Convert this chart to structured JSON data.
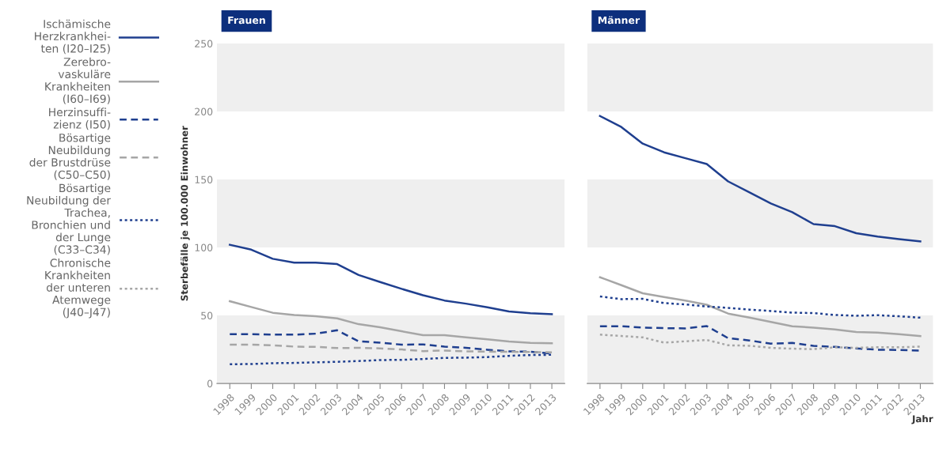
{
  "chart_data": [
    {
      "type": "line",
      "title": "Frauen",
      "ylabel": "Sterbefälle je 100.000 Einwohner",
      "categories": [
        "1998",
        "1999",
        "2000",
        "2001",
        "2002",
        "2003",
        "2004",
        "2005",
        "2006",
        "2007",
        "2008",
        "2009",
        "2010",
        "2011",
        "2012",
        "2013"
      ],
      "ylim": [
        0,
        250
      ],
      "yticks": [
        0,
        50,
        100,
        150,
        200,
        250
      ],
      "legend": "left",
      "marker": "none",
      "bands": [
        {
          "axis": "y",
          "from": 0,
          "to": 50,
          "color": "#efefef"
        },
        {
          "axis": "y",
          "from": 100,
          "to": 150,
          "color": "#efefef"
        },
        {
          "axis": "y",
          "from": 200,
          "to": 250,
          "color": "#efefef"
        }
      ],
      "series": [
        {
          "name": "Ischämische\nHerzkrankhei-\nten (I20–I25)",
          "color": "#1f3f8f",
          "line_style": "solid",
          "values": [
            102,
            98.4,
            91.7,
            88.8,
            88.8,
            87.8,
            79.8,
            74.6,
            69.6,
            64.9,
            61,
            58.7,
            56,
            52.9,
            51.6,
            51
          ]
        },
        {
          "name": "Zerebro-\nvaskuläre\nKrankheiten\n(I60–I69)",
          "color": "#a6a6a6",
          "line_style": "solid",
          "values": [
            60.5,
            56.2,
            52,
            50.4,
            49.4,
            47.9,
            43.6,
            41.3,
            38.4,
            35.5,
            35.5,
            33.9,
            32.4,
            30.8,
            29.8,
            29.5
          ]
        },
        {
          "name": "Herzinsuffi-\nzienz (I50)",
          "color": "#1f3f8f",
          "line_style": "dashed",
          "values": [
            36.2,
            36.2,
            35.9,
            35.9,
            36.6,
            39.1,
            31,
            30,
            28.5,
            28.7,
            27.1,
            26.2,
            24.8,
            23.6,
            23.4,
            22
          ]
        },
        {
          "name": "Bösartige\nNeubildung\nder Brustdrüse\n(C50–C50)",
          "color": "#a6a6a6",
          "line_style": "dashed",
          "values": [
            28.5,
            28.5,
            28.1,
            27.1,
            26.9,
            26,
            26.2,
            25.8,
            25,
            23.8,
            24.2,
            23.6,
            23.4,
            23.3,
            23.1,
            22.9
          ]
        },
        {
          "name": "Bösartige\nNeubildung der\nTrachea,\nBronchien und\nder Lunge\n(C33–C34)",
          "color": "#1f3f8f",
          "line_style": "dotted",
          "values": [
            14.1,
            14.3,
            14.9,
            15.1,
            15.5,
            15.9,
            16.5,
            17.2,
            17.4,
            18,
            18.8,
            19,
            19.4,
            20.3,
            20.9,
            21.1
          ]
        },
        {
          "name": "Chronische\nKrankheiten\nder unteren\nAtemwege\n(J40–J47)",
          "color": "#a6a6a6",
          "line_style": "dotted",
          "values": [
            null,
            null,
            null,
            null,
            null,
            null,
            null,
            null,
            null,
            null,
            null,
            null,
            null,
            null,
            null,
            null
          ]
        }
      ]
    },
    {
      "type": "line",
      "title": "Männer",
      "xlabel": "Jahr",
      "categories": [
        "1998",
        "1999",
        "2000",
        "2001",
        "2002",
        "2003",
        "2004",
        "2005",
        "2006",
        "2007",
        "2008",
        "2009",
        "2010",
        "2011",
        "2012",
        "2013"
      ],
      "ylim": [
        0,
        250
      ],
      "yticks": [
        0,
        50,
        100,
        150,
        200,
        250
      ],
      "tick_labels": "x",
      "marker": "none",
      "bands": [
        {
          "axis": "y",
          "from": 0,
          "to": 50,
          "color": "#efefef"
        },
        {
          "axis": "y",
          "from": 100,
          "to": 150,
          "color": "#efefef"
        },
        {
          "axis": "y",
          "from": 200,
          "to": 250,
          "color": "#efefef"
        }
      ],
      "series": [
        {
          "color": "#1f3f8f",
          "line_style": "solid",
          "values": [
            196.7,
            188.6,
            176.4,
            170,
            165.7,
            161.4,
            148.6,
            140.5,
            132.4,
            126,
            117.2,
            115.7,
            110.5,
            108.1,
            106.2,
            104.5
          ]
        },
        {
          "color": "#a6a6a6",
          "line_style": "solid",
          "values": [
            78.1,
            72.3,
            66.3,
            63.6,
            61,
            57.9,
            51.4,
            48.4,
            45.2,
            42.1,
            41.1,
            39.7,
            37.8,
            37.4,
            36.2,
            34.9
          ]
        },
        {
          "color": "#1f3f8f",
          "line_style": "dashed",
          "values": [
            42.1,
            42.1,
            41.1,
            40.7,
            40.5,
            42.2,
            33.3,
            31.6,
            29.3,
            29.8,
            27.7,
            26.9,
            25.8,
            24.8,
            24.6,
            24.2
          ]
        },
        {
          "color": "#1f3f8f",
          "line_style": "dotted",
          "values": [
            64,
            62,
            62.2,
            59.1,
            58.1,
            56.6,
            55.6,
            54.3,
            53.3,
            52.1,
            51.7,
            50.4,
            49.8,
            50.2,
            49.4,
            48.4
          ]
        },
        {
          "color": "#a6a6a6",
          "line_style": "dotted",
          "values": [
            35.9,
            34.9,
            33.9,
            30,
            31,
            32,
            28.1,
            27.7,
            26.2,
            25.6,
            25.2,
            26.6,
            26.2,
            26.6,
            26.6,
            27.1
          ]
        }
      ]
    }
  ]
}
